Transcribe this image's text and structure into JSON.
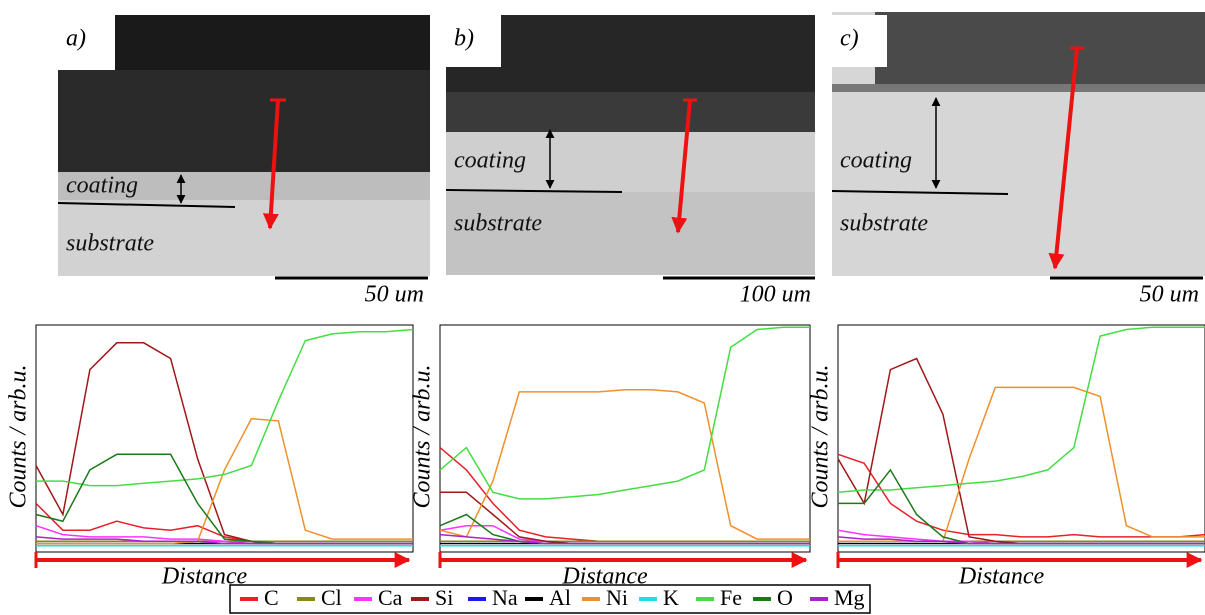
{
  "micrographs": [
    {
      "label": "a)",
      "coating": "coating",
      "substrate": "substrate",
      "scale": "50 um"
    },
    {
      "label": "b)",
      "coating": "coating",
      "substrate": "substrate",
      "scale": "100 um"
    },
    {
      "label": "c)",
      "coating": "coating",
      "substrate": "substrate",
      "scale": "50 um"
    }
  ],
  "legend": [
    {
      "name": "C",
      "color": "#e8202a"
    },
    {
      "name": "Cl",
      "color": "#8a8a10"
    },
    {
      "name": "Ca",
      "color": "#ff33ff"
    },
    {
      "name": "Si",
      "color": "#a01818"
    },
    {
      "name": "Na",
      "color": "#1a1aee"
    },
    {
      "name": "Al",
      "color": "#000000"
    },
    {
      "name": "Ni",
      "color": "#f0902a"
    },
    {
      "name": "K",
      "color": "#22dddd"
    },
    {
      "name": "Fe",
      "color": "#44dd44"
    },
    {
      "name": "O",
      "color": "#1a7a1a"
    },
    {
      "name": "Mg",
      "color": "#aa22cc"
    }
  ],
  "chart_data": [
    {
      "type": "line",
      "y_label": "Counts / arb.u.",
      "x_label": "Distance",
      "ylim": [
        0,
        100
      ],
      "series": [
        {
          "values": [
            20,
            8,
            8,
            12,
            9,
            8,
            10,
            5,
            3,
            3,
            3,
            3,
            3,
            3,
            3
          ]
        },
        {
          "values": [
            3,
            3,
            3,
            3,
            3,
            3,
            3,
            3,
            3,
            3,
            3,
            3,
            3,
            3,
            3
          ]
        },
        {
          "values": [
            10,
            6,
            5,
            5,
            5,
            4,
            4,
            3,
            2,
            2,
            2,
            2,
            2,
            2,
            2
          ]
        },
        {
          "values": [
            37,
            15,
            80,
            92,
            92,
            85,
            40,
            6,
            3,
            2,
            2,
            2,
            2,
            2,
            2
          ]
        },
        {
          "values": [
            1,
            1,
            1,
            1,
            1,
            1,
            1,
            1,
            1,
            1,
            1,
            1,
            1,
            1,
            1
          ]
        },
        {
          "values": [
            2,
            2,
            2,
            2,
            2,
            2,
            2,
            2,
            2,
            2,
            2,
            2,
            2,
            2,
            2
          ]
        },
        {
          "values": [
            2,
            2,
            2,
            2,
            2,
            2,
            3,
            35,
            58,
            57,
            8,
            4,
            4,
            4,
            4
          ]
        },
        {
          "values": [
            1,
            1,
            1,
            1,
            1,
            1,
            1,
            1,
            1,
            1,
            1,
            1,
            1,
            1,
            1
          ]
        },
        {
          "values": [
            30,
            30,
            28,
            28,
            29,
            30,
            31,
            33,
            37,
            66,
            93,
            96,
            97,
            97,
            98
          ]
        },
        {
          "values": [
            15,
            12,
            35,
            42,
            42,
            42,
            20,
            4,
            3,
            2,
            2,
            2,
            2,
            2,
            2
          ]
        },
        {
          "values": [
            5,
            4,
            4,
            4,
            3,
            3,
            3,
            2,
            2,
            2,
            2,
            2,
            2,
            2,
            2
          ]
        }
      ]
    },
    {
      "type": "line",
      "y_label": "Counts / arb.u.",
      "x_label": "Distance",
      "ylim": [
        0,
        100
      ],
      "series": [
        {
          "values": [
            45,
            35,
            20,
            8,
            5,
            4,
            3,
            3,
            3,
            3,
            3,
            3,
            3,
            3,
            3
          ]
        },
        {
          "values": [
            3,
            3,
            3,
            3,
            3,
            3,
            3,
            3,
            3,
            3,
            3,
            3,
            3,
            3,
            3
          ]
        },
        {
          "values": [
            8,
            10,
            10,
            4,
            3,
            2,
            2,
            2,
            2,
            2,
            2,
            2,
            2,
            2,
            2
          ]
        },
        {
          "values": [
            25,
            25,
            15,
            5,
            3,
            2,
            2,
            2,
            2,
            2,
            2,
            2,
            2,
            2,
            2
          ]
        },
        {
          "values": [
            1,
            1,
            1,
            1,
            1,
            1,
            1,
            1,
            1,
            1,
            1,
            1,
            1,
            1,
            1
          ]
        },
        {
          "values": [
            2,
            2,
            2,
            2,
            2,
            2,
            2,
            2,
            2,
            2,
            2,
            2,
            2,
            2,
            2
          ]
        },
        {
          "values": [
            8,
            5,
            30,
            70,
            70,
            70,
            70,
            71,
            71,
            70,
            65,
            10,
            4,
            4,
            4
          ]
        },
        {
          "values": [
            1,
            1,
            1,
            1,
            1,
            1,
            1,
            1,
            1,
            1,
            1,
            1,
            1,
            1,
            1
          ]
        },
        {
          "values": [
            35,
            45,
            25,
            22,
            22,
            23,
            24,
            26,
            28,
            30,
            35,
            90,
            98,
            99,
            99
          ]
        },
        {
          "values": [
            10,
            15,
            6,
            3,
            2,
            2,
            2,
            2,
            2,
            2,
            2,
            2,
            2,
            2,
            2
          ]
        },
        {
          "values": [
            6,
            5,
            4,
            3,
            2,
            2,
            2,
            2,
            2,
            2,
            2,
            2,
            2,
            2,
            2
          ]
        }
      ]
    },
    {
      "type": "line",
      "y_label": "Counts / arb.u.",
      "x_label": "Distance",
      "ylim": [
        0,
        100
      ],
      "series": [
        {
          "values": [
            42,
            38,
            20,
            12,
            8,
            6,
            6,
            5,
            5,
            6,
            5,
            5,
            5,
            5,
            6
          ]
        },
        {
          "values": [
            3,
            3,
            3,
            3,
            3,
            3,
            3,
            3,
            3,
            3,
            3,
            3,
            3,
            3,
            3
          ]
        },
        {
          "values": [
            8,
            6,
            5,
            4,
            3,
            3,
            2,
            2,
            2,
            2,
            2,
            2,
            2,
            2,
            2
          ]
        },
        {
          "values": [
            40,
            20,
            80,
            85,
            60,
            5,
            3,
            2,
            2,
            2,
            2,
            2,
            2,
            2,
            2
          ]
        },
        {
          "values": [
            1,
            1,
            1,
            1,
            1,
            1,
            1,
            1,
            1,
            1,
            1,
            1,
            1,
            1,
            1
          ]
        },
        {
          "values": [
            2,
            2,
            2,
            2,
            2,
            2,
            2,
            2,
            2,
            2,
            2,
            2,
            2,
            2,
            2
          ]
        },
        {
          "values": [
            3,
            3,
            3,
            3,
            3,
            40,
            72,
            72,
            72,
            72,
            68,
            10,
            5,
            5,
            5
          ]
        },
        {
          "values": [
            1,
            1,
            1,
            1,
            1,
            1,
            1,
            1,
            1,
            1,
            1,
            1,
            1,
            1,
            1
          ]
        },
        {
          "values": [
            25,
            26,
            26,
            27,
            28,
            29,
            30,
            32,
            35,
            45,
            95,
            98,
            99,
            99,
            99
          ]
        },
        {
          "values": [
            20,
            20,
            35,
            15,
            5,
            2,
            2,
            2,
            2,
            2,
            2,
            2,
            2,
            2,
            2
          ]
        },
        {
          "values": [
            5,
            4,
            4,
            3,
            3,
            2,
            2,
            2,
            2,
            2,
            2,
            2,
            2,
            2,
            2
          ]
        }
      ]
    }
  ]
}
